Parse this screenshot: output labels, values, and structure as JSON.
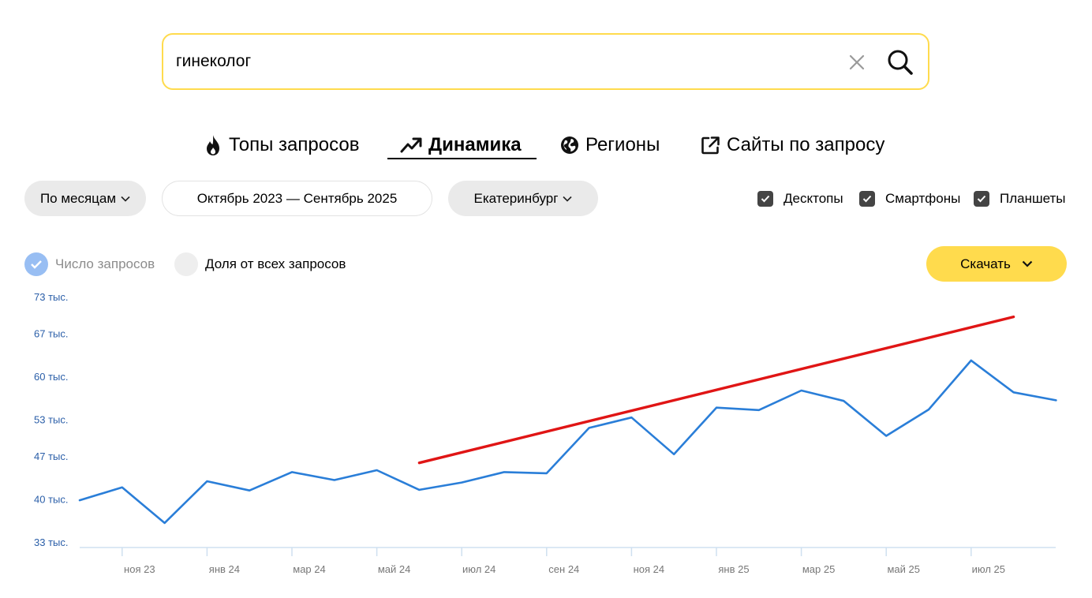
{
  "search": {
    "value": "гинеколог"
  },
  "tabs": [
    {
      "label": "Топы запросов",
      "icon": "fire-icon"
    },
    {
      "label": "Динамика",
      "icon": "trend-icon",
      "active": true
    },
    {
      "label": "Регионы",
      "icon": "globe-icon"
    },
    {
      "label": "Сайты по запросу",
      "icon": "external-link-icon"
    }
  ],
  "filters": {
    "period_label": "По месяцам",
    "date_range": "Октябрь 2023 — Сентябрь 2025",
    "region": "Екатеринбург"
  },
  "devices": [
    {
      "label": "Десктопы",
      "checked": true
    },
    {
      "label": "Смартфоны",
      "checked": true
    },
    {
      "label": "Планшеты",
      "checked": true
    }
  ],
  "metric": {
    "count_label": "Число запросов",
    "share_label": "Доля от всех запросов",
    "selected": "count"
  },
  "download_label": "Скачать",
  "colors": {
    "accent": "#ffdb4d",
    "line": "#2a7ed8",
    "trend": "#e01515",
    "axis_text": "#2a5ea8"
  },
  "chart_data": {
    "type": "line",
    "y_tick_labels": [
      "73 тыс.",
      "67 тыс.",
      "60 тыс.",
      "53 тыс.",
      "47 тыс.",
      "40 тыс.",
      "33 тыс."
    ],
    "y_ticks": [
      73000,
      67000,
      60000,
      53000,
      47000,
      40000,
      33000
    ],
    "ylim": [
      33000,
      73000
    ],
    "x_tick_labels": [
      "ноя 23",
      "янв 24",
      "мар 24",
      "май 24",
      "июл 24",
      "сен 24",
      "ноя 24",
      "янв 25",
      "мар 25",
      "май 25",
      "июл 25"
    ],
    "x": [
      "окт 23",
      "ноя 23",
      "дек 23",
      "янв 24",
      "фев 24",
      "мар 24",
      "апр 24",
      "май 24",
      "июн 24",
      "июл 24",
      "авг 24",
      "сен 24",
      "окт 24",
      "ноя 24",
      "дек 24",
      "янв 25",
      "фев 25",
      "мар 25",
      "апр 25",
      "май 25",
      "июн 25",
      "июл 25",
      "авг 25",
      "сен 25"
    ],
    "series": [
      {
        "values": [
          39800,
          41900,
          36100,
          42900,
          41400,
          44400,
          43100,
          44700,
          41500,
          42700,
          44400,
          44200,
          51600,
          53300,
          47300,
          54900,
          54500,
          57700,
          56000,
          50300,
          54600,
          62600,
          57400,
          56100
        ]
      }
    ],
    "trend_line": {
      "from": [
        "июн 24",
        45900
      ],
      "to": [
        "авг 25",
        69700
      ],
      "color": "#e01515"
    },
    "grid": false
  }
}
